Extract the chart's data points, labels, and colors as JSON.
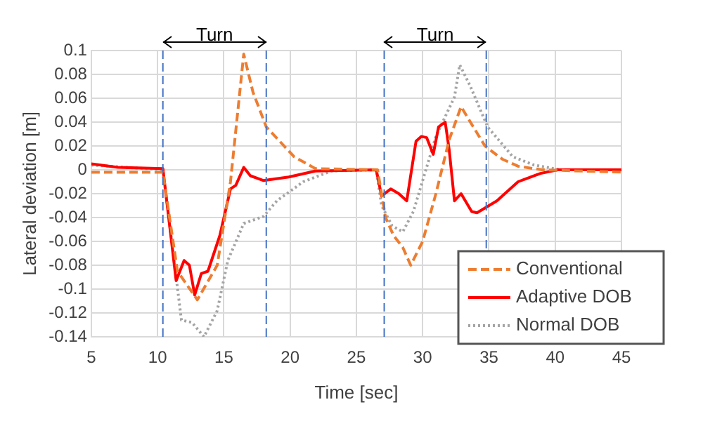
{
  "chart_data": {
    "type": "line",
    "xlabel": "Time [sec]",
    "ylabel": "Lateral deviation [m]",
    "xlim": [
      5,
      45
    ],
    "xticks": [
      5,
      10,
      15,
      20,
      25,
      30,
      35,
      40,
      45
    ],
    "ylim": [
      -0.14,
      0.1
    ],
    "yticks": [
      -0.14,
      -0.12,
      -0.1,
      -0.08,
      -0.06,
      -0.04,
      -0.02,
      0,
      0.02,
      0.04,
      0.06,
      0.08,
      0.1
    ],
    "grid": true,
    "legend": "bottom right",
    "marker": "none",
    "ref_lines": [
      {
        "axis": "x",
        "value": 10.4,
        "color": "#4472c4",
        "line_style": "dashed"
      },
      {
        "axis": "x",
        "value": 18.2,
        "color": "#4472c4",
        "line_style": "dashed"
      },
      {
        "axis": "x",
        "value": 27.1,
        "color": "#4472c4",
        "line_style": "dashed"
      },
      {
        "axis": "x",
        "value": 34.8,
        "color": "#4472c4",
        "line_style": "dashed"
      }
    ],
    "annotations": [
      "Turn",
      "Turn"
    ],
    "series": [
      {
        "name": "Conventional",
        "color": "#ed7d31",
        "line_style": "dashed",
        "x": [
          5,
          10.4,
          11.5,
          13.0,
          14.5,
          15.5,
          16.5,
          17.2,
          18.2,
          20.3,
          21.9,
          26.6,
          27.2,
          27.8,
          28.5,
          29.1,
          30.0,
          31.0,
          32.0,
          32.9,
          33.6,
          34.7,
          36.0,
          37.2,
          39.0,
          45
        ],
        "values": [
          -0.002,
          -0.002,
          -0.085,
          -0.109,
          -0.08,
          -0.01,
          0.097,
          0.065,
          0.036,
          0.011,
          0.001,
          0.0,
          -0.04,
          -0.055,
          -0.065,
          -0.08,
          -0.06,
          -0.02,
          0.025,
          0.053,
          0.04,
          0.02,
          0.009,
          0.003,
          0.0,
          -0.002
        ]
      },
      {
        "name": "Adaptive DOB",
        "color": "#ff0000",
        "line_style": "solid",
        "x": [
          5,
          7,
          10.4,
          11.4,
          12.0,
          12.4,
          12.8,
          13.3,
          13.8,
          14.7,
          15.5,
          15.9,
          16.5,
          17.0,
          18.0,
          19.9,
          21.9,
          26.5,
          26.9,
          27.6,
          28.2,
          28.8,
          29.5,
          29.9,
          30.3,
          30.8,
          31.2,
          31.7,
          32.0,
          32.4,
          32.9,
          33.7,
          34.1,
          35.6,
          37.2,
          38.9,
          40.2,
          45
        ],
        "values": [
          0.005,
          0.002,
          0.001,
          -0.093,
          -0.076,
          -0.08,
          -0.105,
          -0.087,
          -0.085,
          -0.055,
          -0.016,
          -0.013,
          0.002,
          -0.005,
          -0.009,
          -0.006,
          -0.001,
          0.0,
          -0.022,
          -0.016,
          -0.02,
          -0.026,
          0.024,
          0.028,
          0.027,
          0.013,
          0.036,
          0.04,
          0.017,
          -0.026,
          -0.02,
          -0.035,
          -0.036,
          -0.026,
          -0.01,
          -0.003,
          0.0,
          0.0
        ]
      },
      {
        "name": "Normal DOB",
        "color": "#a5a5a5",
        "line_style": "dotted",
        "x": [
          5,
          10.4,
          11.8,
          12.6,
          13.5,
          14.5,
          15.3,
          16.5,
          18.0,
          19.0,
          21.0,
          23.1,
          26.5,
          26.9,
          27.7,
          28.5,
          29.3,
          31.0,
          32.4,
          32.8,
          33.6,
          34.9,
          36.8,
          38.4,
          40.4,
          45
        ],
        "values": [
          0.004,
          0.0,
          -0.126,
          -0.128,
          -0.14,
          -0.118,
          -0.076,
          -0.045,
          -0.039,
          -0.026,
          -0.01,
          -0.001,
          0.0,
          -0.03,
          -0.047,
          -0.052,
          -0.035,
          0.028,
          0.061,
          0.088,
          0.07,
          0.036,
          0.011,
          0.004,
          0.0,
          0.0
        ]
      }
    ]
  }
}
